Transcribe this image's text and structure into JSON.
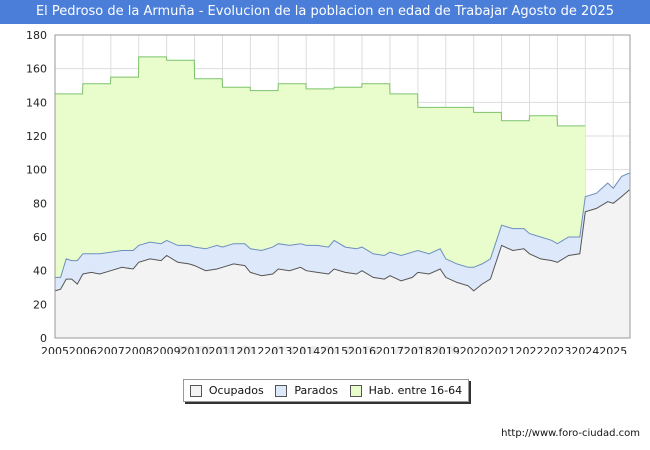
{
  "chart_data": {
    "type": "area",
    "title": "El Pedroso de la Armuña - Evolucion de la poblacion en edad de Trabajar Agosto de 2025",
    "xlabel": "",
    "ylabel": "",
    "xlim": [
      2005,
      2025.6
    ],
    "ylim": [
      0,
      180
    ],
    "grid": true,
    "y_ticks": [
      0,
      20,
      40,
      60,
      80,
      100,
      120,
      140,
      160,
      180
    ],
    "x_ticks": [
      2005,
      2006,
      2007,
      2008,
      2009,
      2010,
      2011,
      2012,
      2013,
      2014,
      2015,
      2016,
      2017,
      2018,
      2019,
      2020,
      2021,
      2022,
      2023,
      2024,
      2025
    ],
    "legend": {
      "position": "bottom-center"
    },
    "series": [
      {
        "name": "Ocupados",
        "color": "#f3f3f3",
        "line_color": "#555555",
        "x": [
          2005.0,
          2005.2,
          2005.4,
          2005.6,
          2005.8,
          2006.0,
          2006.3,
          2006.6,
          2007.0,
          2007.4,
          2007.8,
          2008.0,
          2008.4,
          2008.8,
          2009.0,
          2009.4,
          2009.8,
          2010.0,
          2010.4,
          2010.8,
          2011.0,
          2011.4,
          2011.8,
          2012.0,
          2012.4,
          2012.8,
          2013.0,
          2013.4,
          2013.8,
          2014.0,
          2014.4,
          2014.8,
          2015.0,
          2015.4,
          2015.8,
          2016.0,
          2016.4,
          2016.8,
          2017.0,
          2017.4,
          2017.8,
          2018.0,
          2018.4,
          2018.8,
          2019.0,
          2019.4,
          2019.8,
          2020.0,
          2020.3,
          2020.6,
          2021.0,
          2021.4,
          2021.8,
          2022.0,
          2022.4,
          2022.8,
          2023.0,
          2023.4,
          2023.8,
          2024.0,
          2024.4,
          2024.8,
          2025.0,
          2025.3,
          2025.58
        ],
        "values": [
          28,
          29,
          35,
          35,
          32,
          38,
          39,
          38,
          40,
          42,
          41,
          45,
          47,
          46,
          49,
          45,
          44,
          43,
          40,
          41,
          42,
          44,
          43,
          39,
          37,
          38,
          41,
          40,
          42,
          40,
          39,
          38,
          41,
          39,
          38,
          40,
          36,
          35,
          37,
          34,
          36,
          39,
          38,
          41,
          36,
          33,
          31,
          28,
          32,
          35,
          55,
          52,
          53,
          50,
          47,
          46,
          45,
          49,
          50,
          75,
          77,
          81,
          80,
          84,
          88
        ]
      },
      {
        "name": "Parados",
        "color": "#dde8fa",
        "line_color": "#6d8fbf",
        "x": [
          2005.0,
          2005.2,
          2005.4,
          2005.6,
          2005.8,
          2006.0,
          2006.3,
          2006.6,
          2007.0,
          2007.4,
          2007.8,
          2008.0,
          2008.4,
          2008.8,
          2009.0,
          2009.4,
          2009.8,
          2010.0,
          2010.4,
          2010.8,
          2011.0,
          2011.4,
          2011.8,
          2012.0,
          2012.4,
          2012.8,
          2013.0,
          2013.4,
          2013.8,
          2014.0,
          2014.4,
          2014.8,
          2015.0,
          2015.4,
          2015.8,
          2016.0,
          2016.4,
          2016.8,
          2017.0,
          2017.4,
          2017.8,
          2018.0,
          2018.4,
          2018.8,
          2019.0,
          2019.4,
          2019.8,
          2020.0,
          2020.3,
          2020.6,
          2021.0,
          2021.4,
          2021.8,
          2022.0,
          2022.4,
          2022.8,
          2023.0,
          2023.4,
          2023.8,
          2024.0,
          2024.4,
          2024.8,
          2025.0,
          2025.3,
          2025.58
        ],
        "values": [
          8,
          7,
          12,
          11,
          14,
          12,
          11,
          12,
          11,
          10,
          11,
          10,
          10,
          10,
          9,
          10,
          11,
          11,
          13,
          14,
          12,
          12,
          13,
          14,
          15,
          16,
          15,
          15,
          14,
          15,
          16,
          16,
          17,
          15,
          15,
          14,
          14,
          14,
          14,
          15,
          15,
          13,
          12,
          12,
          11,
          11,
          11,
          14,
          12,
          12,
          12,
          13,
          12,
          12,
          13,
          12,
          11,
          11,
          10,
          9,
          9,
          11,
          9,
          12,
          10
        ]
      },
      {
        "name": "Hab. entre 16-64",
        "color": "#e8fccc",
        "line_color": "#7cc36a",
        "x": [
          2005.0,
          2005.99,
          2006.0,
          2006.99,
          2007.0,
          2007.99,
          2008.0,
          2008.99,
          2009.0,
          2009.99,
          2010.0,
          2010.99,
          2011.0,
          2011.99,
          2012.0,
          2012.99,
          2013.0,
          2013.99,
          2014.0,
          2014.99,
          2015.0,
          2015.99,
          2016.0,
          2016.99,
          2017.0,
          2017.99,
          2018.0,
          2018.99,
          2019.0,
          2019.99,
          2020.0,
          2020.99,
          2021.0,
          2021.99,
          2022.0,
          2022.99,
          2023.0,
          2023.99
        ],
        "values": [
          145,
          145,
          151,
          151,
          155,
          155,
          167,
          167,
          165,
          165,
          154,
          154,
          149,
          149,
          147,
          147,
          151,
          151,
          148,
          148,
          149,
          149,
          151,
          151,
          145,
          145,
          137,
          137,
          137,
          137,
          134,
          134,
          129,
          129,
          132,
          132,
          126,
          126
        ]
      }
    ]
  },
  "legend_items": [
    "Ocupados",
    "Parados",
    "Hab. entre 16-64"
  ],
  "watermark": "FORO-CIUDAD.COM",
  "source_url": "http://www.foro-ciudad.com"
}
